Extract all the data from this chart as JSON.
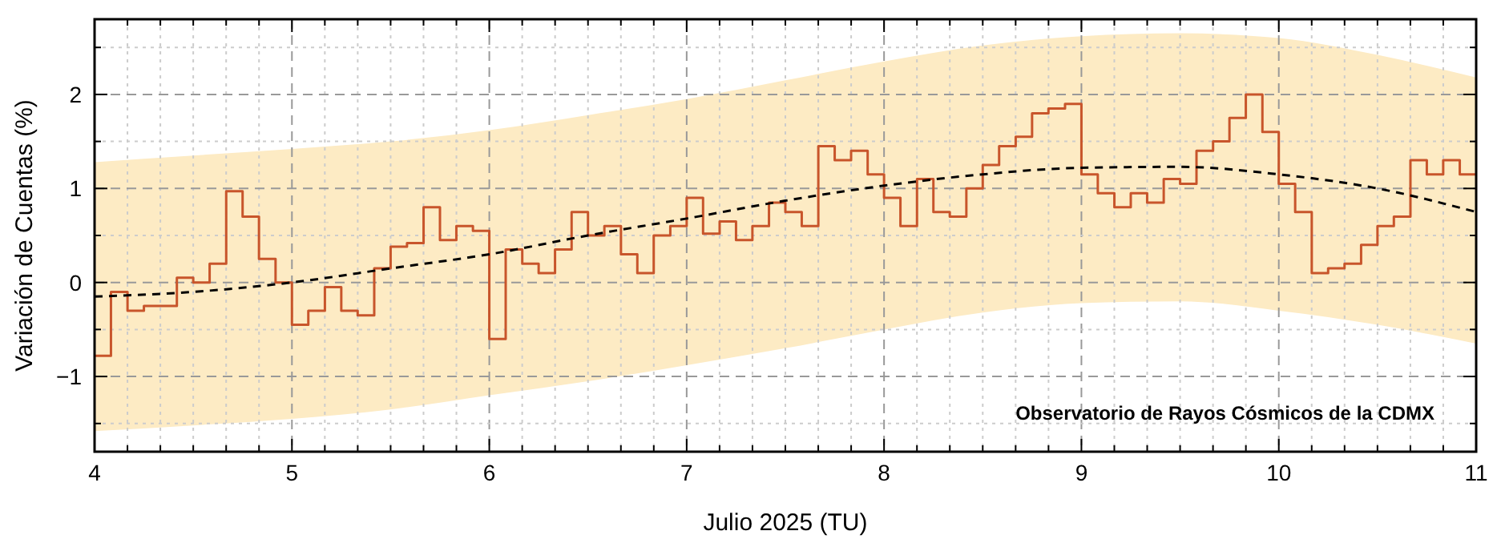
{
  "chart_data": {
    "type": "step",
    "xlabel": "Julio 2025 (TU)",
    "ylabel": "Variación de Cuentas (%)",
    "xlim": [
      4,
      11
    ],
    "ylim": [
      -1.8,
      2.8
    ],
    "xticks": [
      4,
      {
        "value": 4.1667,
        "label": null
      },
      {
        "value": 4.3333,
        "label": null
      },
      {
        "value": 4.5,
        "label": null
      },
      {
        "value": 4.6667,
        "label": null
      },
      {
        "value": 4.8333,
        "label": null
      },
      5,
      {
        "value": 5.1667,
        "label": null
      },
      {
        "value": 5.3333,
        "label": null
      },
      {
        "value": 5.5,
        "label": null
      },
      {
        "value": 5.6667,
        "label": null
      },
      {
        "value": 5.8333,
        "label": null
      },
      6,
      {
        "value": 6.1667,
        "label": null
      },
      {
        "value": 6.3333,
        "label": null
      },
      {
        "value": 6.5,
        "label": null
      },
      {
        "value": 6.6667,
        "label": null
      },
      {
        "value": 6.8333,
        "label": null
      },
      7,
      {
        "value": 7.1667,
        "label": null
      },
      {
        "value": 7.3333,
        "label": null
      },
      {
        "value": 7.5,
        "label": null
      },
      {
        "value": 7.6667,
        "label": null
      },
      {
        "value": 7.8333,
        "label": null
      },
      8,
      {
        "value": 8.1667,
        "label": null
      },
      {
        "value": 8.3333,
        "label": null
      },
      {
        "value": 8.5,
        "label": null
      },
      {
        "value": 8.6667,
        "label": null
      },
      {
        "value": 8.8333,
        "label": null
      },
      9,
      {
        "value": 9.1667,
        "label": null
      },
      {
        "value": 9.3333,
        "label": null
      },
      {
        "value": 9.5,
        "label": null
      },
      {
        "value": 9.6667,
        "label": null
      },
      {
        "value": 9.8333,
        "label": null
      },
      10,
      {
        "value": 10.1667,
        "label": null
      },
      {
        "value": 10.3333,
        "label": null
      },
      {
        "value": 10.5,
        "label": null
      },
      {
        "value": 10.6667,
        "label": null
      },
      {
        "value": 10.8333,
        "label": null
      },
      11
    ],
    "yticks": [
      {
        "value": -1.5,
        "label": null
      },
      {
        "value": -1,
        "label": "−1"
      },
      {
        "value": -0.5,
        "label": null
      },
      0,
      {
        "value": 0.5,
        "label": null
      },
      1,
      {
        "value": 1.5,
        "label": null
      },
      2,
      {
        "value": 2.5,
        "label": null
      }
    ],
    "grid": true,
    "series": [
      {
        "color": "#c8552b",
        "x": [
          4,
          4.083,
          4.167,
          4.25,
          4.333,
          4.417,
          4.5,
          4.583,
          4.667,
          4.75,
          4.833,
          4.917,
          5,
          5.083,
          5.167,
          5.25,
          5.333,
          5.417,
          5.5,
          5.583,
          5.667,
          5.75,
          5.833,
          5.917,
          6,
          6.083,
          6.167,
          6.25,
          6.333,
          6.417,
          6.5,
          6.583,
          6.667,
          6.75,
          6.833,
          6.917,
          7,
          7.083,
          7.167,
          7.25,
          7.333,
          7.417,
          7.5,
          7.583,
          7.667,
          7.75,
          7.833,
          7.917,
          8,
          8.083,
          8.167,
          8.25,
          8.333,
          8.417,
          8.5,
          8.583,
          8.667,
          8.75,
          8.833,
          8.917,
          9,
          9.083,
          9.167,
          9.25,
          9.333,
          9.417,
          9.5,
          9.583,
          9.667,
          9.75,
          9.833,
          9.917,
          10,
          10.083,
          10.167,
          10.25,
          10.333,
          10.417,
          10.5,
          10.583,
          10.667,
          10.75,
          10.833,
          10.917,
          11
        ],
        "values": [
          -0.78,
          -0.1,
          -0.3,
          -0.25,
          -0.25,
          0.05,
          0.0,
          0.2,
          0.97,
          0.7,
          0.25,
          0.0,
          -0.45,
          -0.3,
          -0.05,
          -0.3,
          -0.35,
          0.15,
          0.38,
          0.42,
          0.8,
          0.45,
          0.6,
          0.55,
          -0.6,
          0.35,
          0.2,
          0.1,
          0.35,
          0.75,
          0.5,
          0.6,
          0.3,
          0.1,
          0.5,
          0.6,
          0.9,
          0.52,
          0.65,
          0.45,
          0.6,
          0.85,
          0.75,
          0.6,
          1.45,
          1.3,
          1.4,
          1.15,
          0.9,
          0.6,
          1.1,
          0.75,
          0.7,
          1.0,
          1.25,
          1.45,
          1.55,
          1.8,
          1.85,
          1.9,
          1.15,
          0.95,
          0.8,
          0.95,
          0.85,
          1.1,
          1.05,
          1.4,
          1.5,
          1.75,
          2.0,
          1.6,
          1.05,
          0.75,
          0.1,
          0.15,
          0.2,
          0.4,
          0.6,
          0.7,
          1.3,
          1.15,
          1.3,
          1.15,
          1.15
        ]
      },
      {
        "type": "line",
        "color": "#000000",
        "line_style": "dashed",
        "marker": "none",
        "x": [
          4,
          4.5,
          5,
          5.5,
          6,
          6.5,
          7,
          7.5,
          8,
          8.5,
          9,
          9.5,
          10,
          10.5,
          11
        ],
        "values": [
          -0.15,
          -0.1,
          0.0,
          0.15,
          0.3,
          0.5,
          0.68,
          0.87,
          1.03,
          1.15,
          1.22,
          1.23,
          1.15,
          1.0,
          0.75
        ],
        "upper": [
          1.28,
          1.35,
          1.42,
          1.5,
          1.62,
          1.78,
          1.95,
          2.15,
          2.35,
          2.52,
          2.62,
          2.65,
          2.6,
          2.42,
          2.18
        ],
        "lower": [
          -1.58,
          -1.52,
          -1.45,
          -1.35,
          -1.2,
          -1.05,
          -0.88,
          -0.7,
          -0.5,
          -0.32,
          -0.22,
          -0.2,
          -0.3,
          -0.45,
          -0.65
        ]
      }
    ],
    "annotations": [
      "Observatorio de Rayos Cósmicos de la CDMX"
    ]
  }
}
